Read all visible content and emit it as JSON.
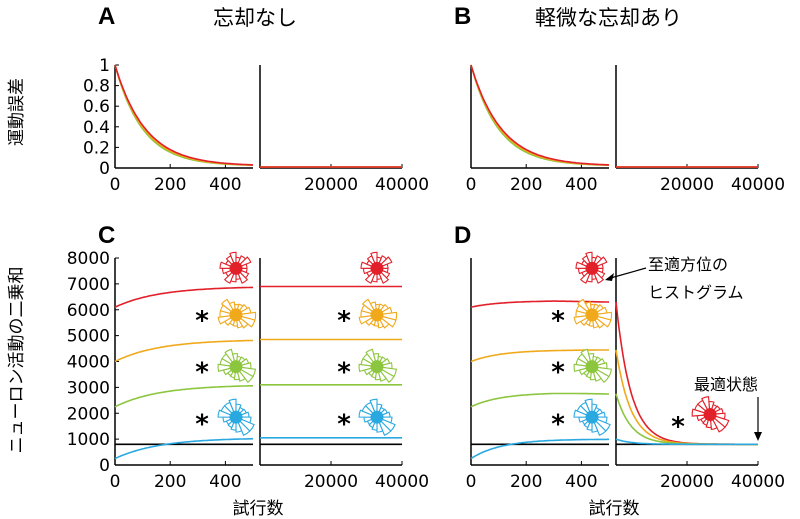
{
  "colors": {
    "red": "#e2202a",
    "orange": "#f1a91c",
    "green": "#8cc63f",
    "blue": "#2aa8e0",
    "black": "#000000"
  },
  "chart_data": [
    {
      "id": "A",
      "type": "line",
      "title": "忘却なし",
      "ylabel": "運動誤差",
      "ylim": [
        0,
        1
      ],
      "yticks": [
        "0",
        "0.2",
        "0.4",
        "0.6",
        "0.8",
        "1"
      ],
      "xticks_left": [
        "0",
        "200",
        "400"
      ],
      "xticks_right": [
        "20000",
        "40000"
      ],
      "x_left_range": [
        0,
        500
      ],
      "x_right_range": [
        0,
        40000
      ],
      "series": [
        {
          "color": "red",
          "left": {
            "start": 1.0,
            "end": 0.02,
            "tau": 110
          },
          "right_level": 0.01
        },
        {
          "color": "orange",
          "left": {
            "start": 1.0,
            "end": 0.02,
            "tau": 105
          },
          "right_level": 0.01
        },
        {
          "color": "green",
          "left": {
            "start": 1.0,
            "end": 0.02,
            "tau": 100
          },
          "right_level": 0.01
        }
      ]
    },
    {
      "id": "B",
      "type": "line",
      "title": "軽微な忘却あり",
      "ylim": [
        0,
        1
      ],
      "xticks_left": [
        "0",
        "200",
        "400"
      ],
      "xticks_right": [
        "20000",
        "40000"
      ],
      "x_left_range": [
        0,
        500
      ],
      "x_right_range": [
        0,
        40000
      ],
      "series": [
        {
          "color": "red",
          "left": {
            "start": 1.0,
            "end": 0.02,
            "tau": 110
          },
          "right_level": 0.01
        },
        {
          "color": "orange",
          "left": {
            "start": 1.0,
            "end": 0.02,
            "tau": 105
          },
          "right_level": 0.01
        },
        {
          "color": "green",
          "left": {
            "start": 1.0,
            "end": 0.02,
            "tau": 100
          },
          "right_level": 0.01
        }
      ]
    },
    {
      "id": "C",
      "type": "line",
      "ylabel": "ニューロン活動の二乗和",
      "xlabel": "試行数",
      "ylim": [
        0,
        8000
      ],
      "yticks": [
        "0",
        "1000",
        "2000",
        "3000",
        "4000",
        "5000",
        "6000",
        "7000",
        "8000"
      ],
      "xticks_left": [
        "0",
        "200",
        "400"
      ],
      "xticks_right": [
        "20000",
        "40000"
      ],
      "x_left_range": [
        0,
        500
      ],
      "x_right_range": [
        0,
        40000
      ],
      "optimum_level": 800,
      "series": [
        {
          "color": "red",
          "left_start": 6100,
          "left_end": 6900,
          "right_level": 6900,
          "right_decay_to": null
        },
        {
          "color": "orange",
          "left_start": 4000,
          "left_end": 4850,
          "right_level": 4850,
          "right_decay_to": null
        },
        {
          "color": "green",
          "left_start": 2250,
          "left_end": 3100,
          "right_level": 3100,
          "right_decay_to": null
        },
        {
          "color": "blue",
          "left_start": 250,
          "left_end": 1050,
          "right_level": 1050,
          "right_decay_to": null
        }
      ],
      "star": "*"
    },
    {
      "id": "D",
      "type": "line",
      "xlabel": "試行数",
      "ylim": [
        0,
        8000
      ],
      "xticks_left": [
        "0",
        "200",
        "400"
      ],
      "xticks_right": [
        "20000",
        "40000"
      ],
      "x_left_range": [
        0,
        500
      ],
      "x_right_range": [
        0,
        40000
      ],
      "optimum_level": 800,
      "series": [
        {
          "color": "red",
          "left_start": 6100,
          "left_end": 6300,
          "peak_left": 6350,
          "right_level": 6300,
          "right_decay_to": 800
        },
        {
          "color": "orange",
          "left_start": 4000,
          "left_end": 4450,
          "peak_left": 4450,
          "right_level": 4450,
          "right_decay_to": 800
        },
        {
          "color": "green",
          "left_start": 2250,
          "left_end": 2750,
          "peak_left": 2800,
          "right_level": 2750,
          "right_decay_to": 800
        },
        {
          "color": "blue",
          "left_start": 250,
          "left_end": 1000,
          "peak_left": 1000,
          "right_level": 1000,
          "right_decay_to": 800
        }
      ],
      "star": "*",
      "annotations": {
        "histogram": "至適方位の\nヒストグラム",
        "optimum": "最適状態"
      }
    }
  ],
  "annotations": {
    "histogram_line1": "至適方位の",
    "histogram_line2": "ヒストグラム",
    "optimum": "最適状態"
  },
  "panel_letters": [
    "A",
    "B",
    "C",
    "D"
  ]
}
